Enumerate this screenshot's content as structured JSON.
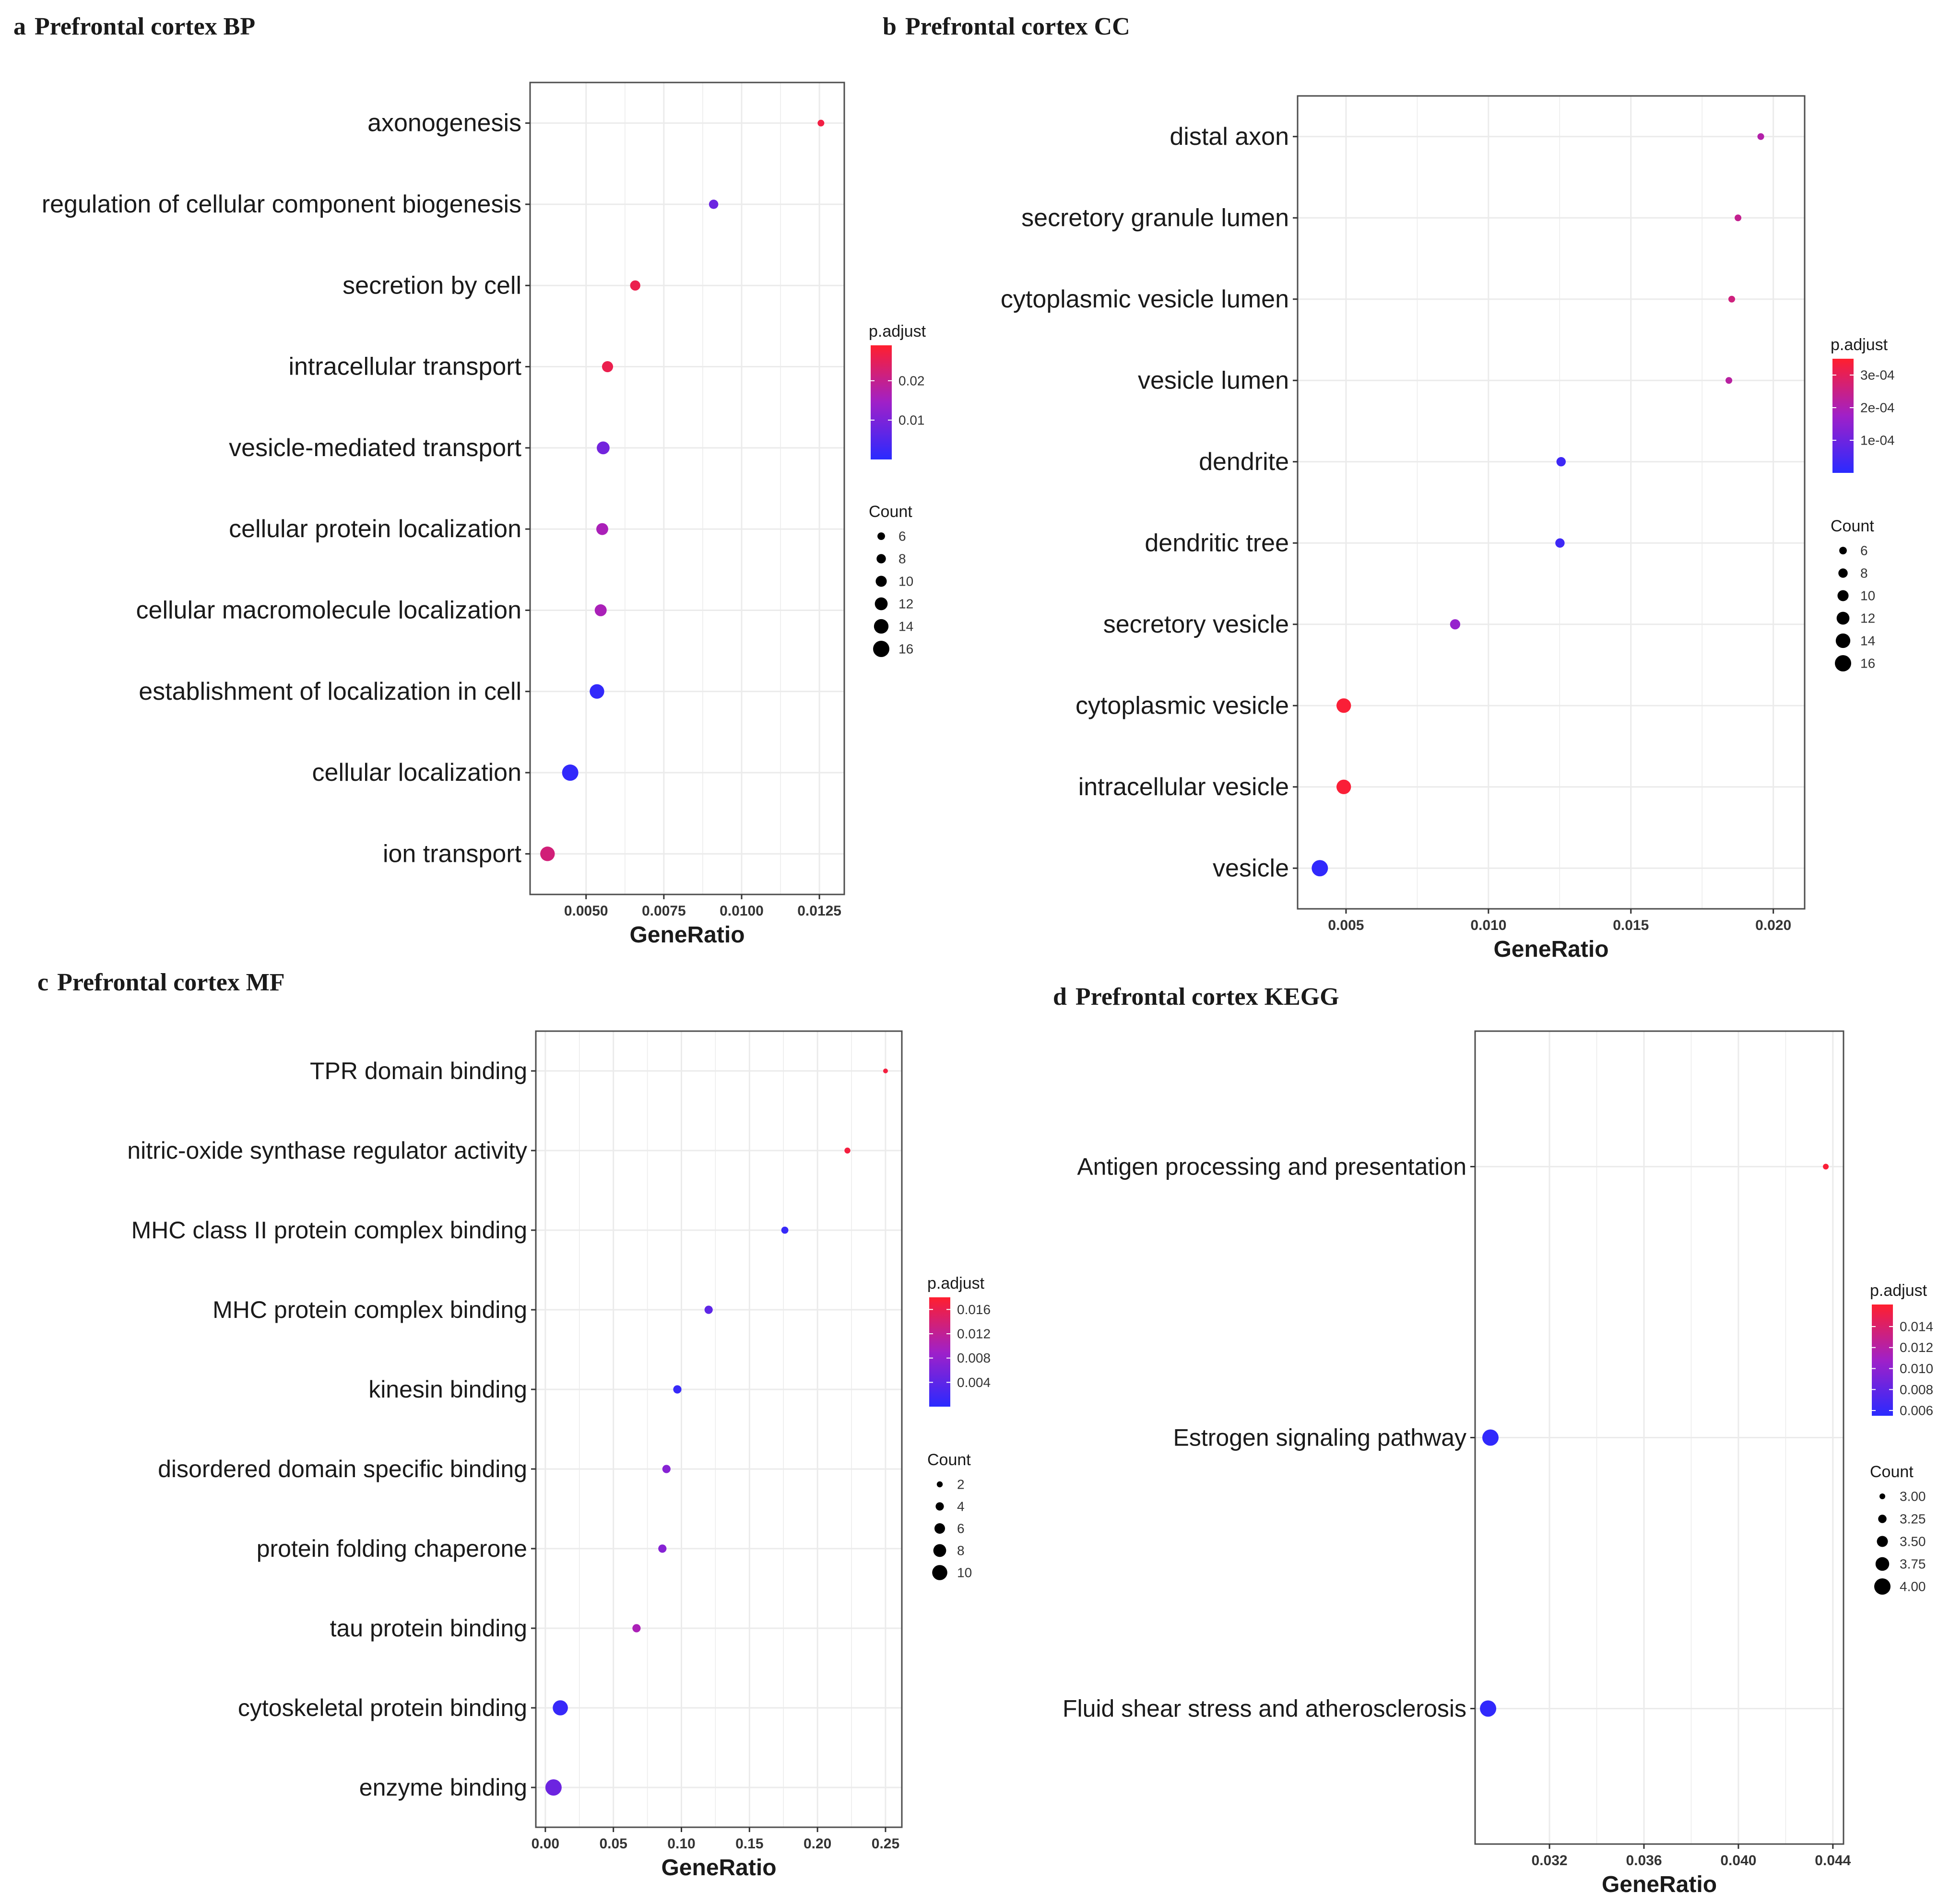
{
  "figure": {
    "colors": {
      "low": "#2a2aff",
      "mid": "#a020c8",
      "high": "#ff1f2e",
      "frame": "#4d4d4d",
      "grid": "#ebebeb",
      "text": "#1a1a1a"
    },
    "legend": {
      "color_title": "p.adjust",
      "size_title": "Count"
    }
  },
  "chart_data": [
    {
      "id": "a",
      "type": "scatter",
      "letter": "a",
      "title": "Prefrontal cortex BP",
      "xlabel": "GeneRatio",
      "ylabel": "",
      "xlim": [
        0.0032,
        0.0133
      ],
      "xticks": [
        0.005,
        0.0075,
        0.01,
        0.0125
      ],
      "xtick_labels": [
        "0.0050",
        "0.0075",
        "0.0100",
        "0.0125"
      ],
      "categories": [
        "axonogenesis",
        "regulation of cellular component biogenesis",
        "secretion by cell",
        "intracellular transport",
        "vesicle-mediated transport",
        "cellular protein localization",
        "cellular macromolecule localization",
        "establishment of localization in cell",
        "cellular localization",
        "ion transport"
      ],
      "gene_ratio": [
        0.01255,
        0.0091,
        0.00658,
        0.00569,
        0.00555,
        0.00552,
        0.00547,
        0.00535,
        0.00449,
        0.00376
      ],
      "count": [
        5,
        8,
        9,
        10,
        12,
        11,
        11,
        14,
        16,
        14
      ],
      "padj": [
        0.027,
        0.008,
        0.026,
        0.026,
        0.009,
        0.016,
        0.016,
        0.001,
        0.001,
        0.022
      ],
      "color_range": [
        0.0,
        0.029
      ],
      "color_ticks": [
        0.01,
        0.02
      ],
      "color_tick_labels": [
        "0.01",
        "0.02"
      ],
      "size_breaks": [
        6,
        8,
        10,
        12,
        14,
        16
      ],
      "size_break_labels": [
        "6",
        "8",
        "10",
        "12",
        "14",
        "16"
      ],
      "size_range": [
        5,
        16
      ]
    },
    {
      "id": "b",
      "type": "scatter",
      "letter": "b",
      "title": "Prefrontal cortex CC",
      "xlabel": "GeneRatio",
      "ylabel": "",
      "xlim": [
        0.0033,
        0.0211
      ],
      "xticks": [
        0.005,
        0.01,
        0.015,
        0.02
      ],
      "xtick_labels": [
        "0.005",
        "0.010",
        "0.015",
        "0.020"
      ],
      "categories": [
        "distal axon",
        "secretory granule lumen",
        "cytoplasmic vesicle lumen",
        "vesicle lumen",
        "dendrite",
        "dendritic tree",
        "secretory vesicle",
        "cytoplasmic vesicle",
        "intracellular vesicle",
        "vesicle"
      ],
      "gene_ratio": [
        0.01956,
        0.01876,
        0.01854,
        0.01844,
        0.01255,
        0.01251,
        0.00883,
        0.00492,
        0.00492,
        0.00408
      ],
      "count": [
        5,
        5,
        5,
        5,
        8,
        8,
        9,
        14,
        14,
        16
      ],
      "padj": [
        0.00021,
        0.00024,
        0.00026,
        0.00022,
        3e-05,
        3e-05,
        0.00016,
        0.00034,
        0.00034,
        1e-05
      ],
      "color_range": [
        0.0,
        0.00035
      ],
      "color_ticks": [
        0.0001,
        0.0002,
        0.0003
      ],
      "color_tick_labels": [
        "1e-04",
        "2e-04",
        "3e-04"
      ],
      "size_breaks": [
        6,
        8,
        10,
        12,
        14,
        16
      ],
      "size_break_labels": [
        "6",
        "8",
        "10",
        "12",
        "14",
        "16"
      ],
      "size_range": [
        5,
        16
      ]
    },
    {
      "id": "c",
      "type": "scatter",
      "letter": "c",
      "title": "Prefrontal cortex MF",
      "xlabel": "GeneRatio",
      "ylabel": "",
      "xlim": [
        -0.007,
        0.262
      ],
      "xticks": [
        0.0,
        0.05,
        0.1,
        0.15,
        0.2,
        0.25
      ],
      "xtick_labels": [
        "0.00",
        "0.05",
        "0.10",
        "0.15",
        "0.20",
        "0.25"
      ],
      "categories": [
        "TPR domain binding",
        "nitric-oxide synthase regulator activity",
        "MHC class II protein complex binding",
        "MHC protein complex binding",
        "kinesin binding",
        "disordered domain specific binding",
        "protein folding chaperone",
        "tau protein binding",
        "cytoskeletal protein binding",
        "enzyme binding"
      ],
      "gene_ratio": [
        0.25,
        0.222,
        0.176,
        0.12,
        0.097,
        0.089,
        0.086,
        0.067,
        0.011,
        0.006
      ],
      "count": [
        1,
        2,
        3,
        4,
        4,
        4,
        4,
        4,
        10,
        11
      ],
      "padj": [
        0.017,
        0.017,
        0.001,
        0.004,
        0.001,
        0.007,
        0.007,
        0.01,
        0.001,
        0.005
      ],
      "color_range": [
        0.0,
        0.018
      ],
      "color_ticks": [
        0.004,
        0.008,
        0.012,
        0.016
      ],
      "color_tick_labels": [
        "0.004",
        "0.008",
        "0.012",
        "0.016"
      ],
      "size_breaks": [
        2,
        4,
        6,
        8,
        10
      ],
      "size_break_labels": [
        "2",
        "4",
        "6",
        "8",
        "10"
      ],
      "size_range": [
        1,
        11
      ]
    },
    {
      "id": "d",
      "type": "scatter",
      "letter": "d",
      "title": "Prefrontal cortex KEGG",
      "xlabel": "GeneRatio",
      "ylabel": "",
      "xlim": [
        0.02885,
        0.04445
      ],
      "xticks": [
        0.032,
        0.036,
        0.04,
        0.044
      ],
      "xtick_labels": [
        "0.032",
        "0.036",
        "0.040",
        "0.044"
      ],
      "categories": [
        "Antigen processing and presentation",
        "Estrogen signaling pathway",
        "Fluid shear stress and atherosclerosis"
      ],
      "gene_ratio": [
        0.0437,
        0.0295,
        0.0294
      ],
      "count": [
        3,
        4,
        4
      ],
      "padj": [
        0.0158,
        0.0058,
        0.0058
      ],
      "color_range": [
        0.0055,
        0.0161
      ],
      "color_ticks": [
        0.006,
        0.008,
        0.01,
        0.012,
        0.014
      ],
      "color_tick_labels": [
        "0.006",
        "0.008",
        "0.010",
        "0.012",
        "0.014"
      ],
      "size_breaks": [
        3.0,
        3.25,
        3.5,
        3.75,
        4.0
      ],
      "size_break_labels": [
        "3.00",
        "3.25",
        "3.50",
        "3.75",
        "4.00"
      ],
      "size_range": [
        3,
        4
      ]
    }
  ]
}
